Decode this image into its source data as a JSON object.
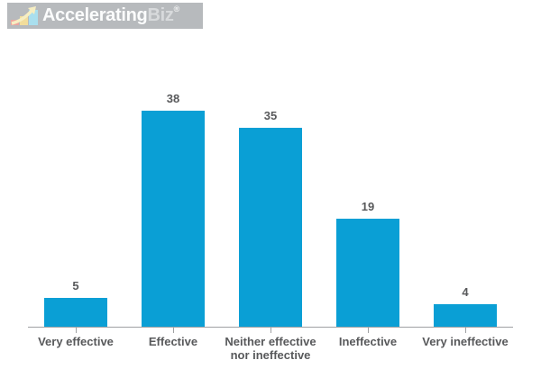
{
  "logo": {
    "brand_primary": "Accelerating",
    "brand_secondary": "Biz",
    "registered_mark": "®",
    "background_color": "#b7babd",
    "icon": "growth-bars-arrow-icon",
    "icon_colors": {
      "bar_red": "#eba39d",
      "bar_yellow": "#f2dd9b",
      "bar_teal": "#a9dfee",
      "arrow": "#f6eec2"
    }
  },
  "chart_data": {
    "type": "bar",
    "title": "",
    "xlabel": "",
    "ylabel": "",
    "categories": [
      "Very effective",
      "Effective",
      "Neither effective nor ineffective",
      "Ineffective",
      "Very ineffective"
    ],
    "values": [
      5,
      38,
      35,
      19,
      4
    ],
    "ylim": [
      0,
      40
    ],
    "grid": false,
    "legend": false,
    "data_labels_shown": true,
    "bar_color": "#0a9fd5",
    "label_color": "#58595b",
    "axis_color": "#9fa1a3"
  }
}
